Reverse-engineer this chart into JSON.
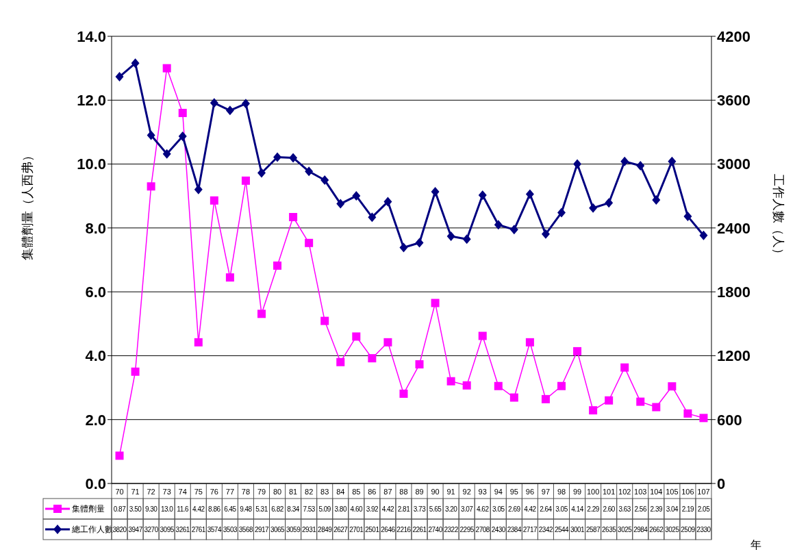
{
  "chart_data": {
    "type": "line",
    "xlabel": "年",
    "ylabel": "集體劑量（人西弗）",
    "y2label": "工作人數（人）",
    "categories": [
      "70",
      "71",
      "72",
      "73",
      "74",
      "75",
      "76",
      "77",
      "78",
      "79",
      "80",
      "81",
      "82",
      "83",
      "84",
      "85",
      "86",
      "87",
      "88",
      "89",
      "90",
      "91",
      "92",
      "93",
      "94",
      "95",
      "96",
      "97",
      "98",
      "99",
      "100",
      "101",
      "102",
      "103",
      "104",
      "105",
      "106",
      "107"
    ],
    "series": [
      {
        "name": "集體劑量",
        "color": "#ff00ff",
        "marker": "square",
        "values": [
          0.87,
          3.5,
          9.3,
          13.0,
          11.6,
          4.42,
          8.86,
          6.45,
          9.48,
          5.31,
          6.82,
          8.34,
          7.53,
          5.09,
          3.8,
          4.6,
          3.92,
          4.42,
          2.81,
          3.73,
          5.65,
          3.2,
          3.07,
          4.62,
          3.05,
          2.69,
          4.42,
          2.64,
          3.05,
          4.14,
          2.29,
          2.6,
          3.63,
          2.56,
          2.39,
          3.04,
          2.19,
          2.05
        ],
        "value_labels": [
          "0.87",
          "3.50",
          "9.30",
          "13.0",
          "11.6",
          "4.42",
          "8.86",
          "6.45",
          "9.48",
          "5.31",
          "6.82",
          "8.34",
          "7.53",
          "5.09",
          "3.80",
          "4.60",
          "3.92",
          "4.42",
          "2.81",
          "3.73",
          "5.65",
          "3.20",
          "3.07",
          "4.62",
          "3.05",
          "2.69",
          "4.42",
          "2.64",
          "3.05",
          "4.14",
          "2.29",
          "2.60",
          "3.63",
          "2.56",
          "2.39",
          "3.04",
          "2.19",
          "2.05"
        ]
      },
      {
        "name": "總工作人數",
        "color": "#000080",
        "marker": "diamond",
        "axis": "y2",
        "values": [
          3820,
          3947,
          3270,
          3095,
          3261,
          2761,
          3574,
          3503,
          3568,
          2917,
          3065,
          3059,
          2931,
          2849,
          2627,
          2701,
          2501,
          2646,
          2216,
          2261,
          2740,
          2322,
          2295,
          2708,
          2430,
          2384,
          2717,
          2342,
          2544,
          3001,
          2587,
          2635,
          3025,
          2984,
          2662,
          3025,
          2509,
          2330
        ],
        "value_labels": [
          "3820",
          "3947",
          "3270",
          "3095",
          "3261",
          "2761",
          "3574",
          "3503",
          "3568",
          "2917",
          "3065",
          "3059",
          "2931",
          "2849",
          "2627",
          "2701",
          "2501",
          "2646",
          "2216",
          "2261",
          "2740",
          "2322",
          "2295",
          "2708",
          "2430",
          "2384",
          "2717",
          "2342",
          "2544",
          "3001",
          "2587",
          "2635",
          "3025",
          "2984",
          "2662",
          "3025",
          "2509",
          "2330"
        ]
      }
    ],
    "ylim": [
      0,
      14
    ],
    "yticks": [
      {
        "value": 0,
        "label": "0.0"
      },
      {
        "value": 2,
        "label": "2.0"
      },
      {
        "value": 4,
        "label": "4.0"
      },
      {
        "value": 6,
        "label": "6.0"
      },
      {
        "value": 8,
        "label": "8.0"
      },
      {
        "value": 10,
        "label": "10.0"
      },
      {
        "value": 12,
        "label": "12.0"
      },
      {
        "value": 14,
        "label": "14.0"
      }
    ],
    "y2lim": [
      0,
      4200
    ],
    "y2ticks": [
      0,
      600,
      1200,
      1800,
      2400,
      3000,
      3600,
      4200
    ],
    "grid": "y",
    "legend": "bottom left"
  }
}
